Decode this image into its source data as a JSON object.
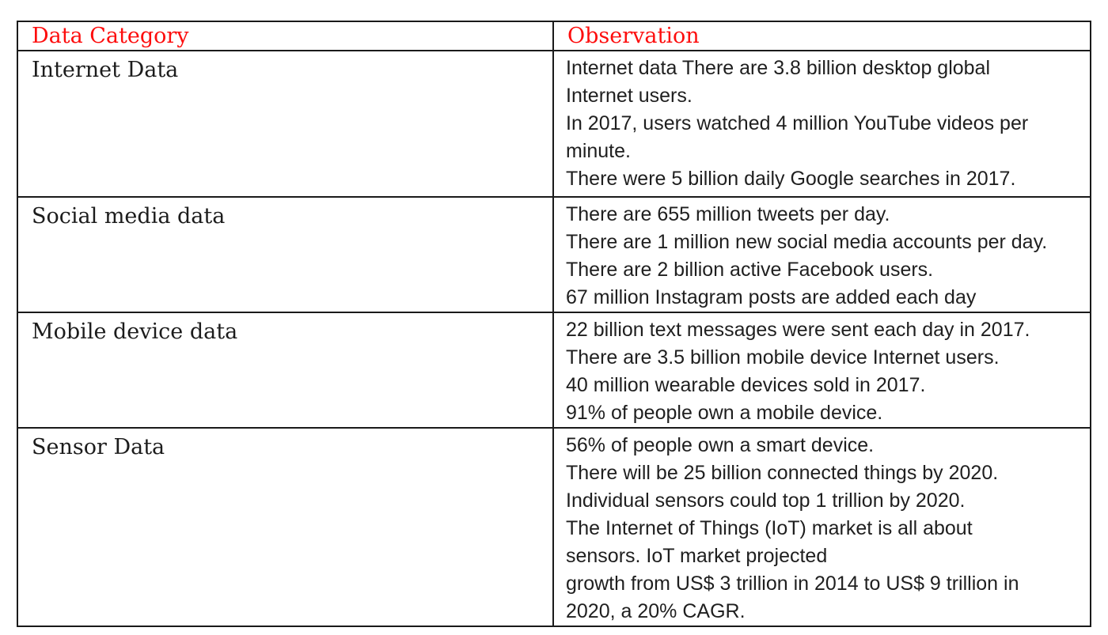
{
  "colors": {
    "header_text": "#fd0d0d",
    "border": "#1a1a1a",
    "body_text": "#1f1f1f",
    "background": "#ffffff"
  },
  "table": {
    "header": {
      "category": "Data Category",
      "observation": "Observation"
    },
    "rows": [
      {
        "category": "Internet Data",
        "observation_lines": [
          "Internet data There are 3.8 billion desktop global",
          "Internet users.",
          "In 2017, users watched 4 million YouTube videos per",
          "minute.",
          "There were 5 billion daily Google searches in 2017."
        ]
      },
      {
        "category": "Social media data",
        "observation_lines": [
          "There are 655 million tweets per day.",
          "There are 1 million new social media accounts per day.",
          "There are 2 billion active Facebook users.",
          "67 million Instagram posts are added each day"
        ]
      },
      {
        "category": "Mobile device data",
        "observation_lines": [
          "22 billion text messages were sent each day in 2017.",
          "There are 3.5 billion mobile device Internet users.",
          "40 million wearable devices sold in 2017.",
          "91% of people own a mobile device."
        ]
      },
      {
        "category": "Sensor Data",
        "observation_lines": [
          "56% of people own a smart device.",
          "There will be 25 billion connected things by 2020.",
          "Individual sensors could top 1 trillion by 2020.",
          "The Internet of Things (IoT) market is all about",
          "sensors. IoT market projected",
          "growth from US$ 3 trillion in 2014 to US$ 9 trillion in",
          "2020, a 20% CAGR."
        ]
      }
    ]
  }
}
